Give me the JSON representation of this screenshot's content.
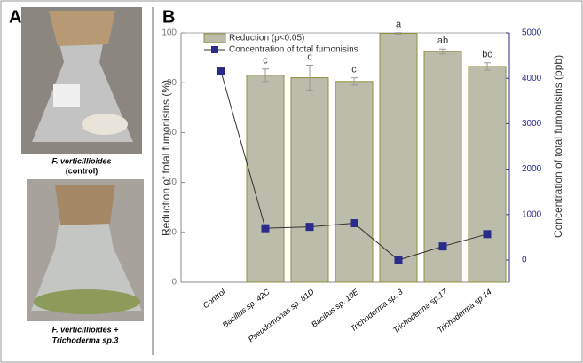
{
  "panels": {
    "a": "A",
    "b": "B"
  },
  "captions": [
    [
      "F. verticillioides",
      "(control)"
    ],
    [
      "F. verticillioides +",
      "Trichoderma sp.3"
    ]
  ],
  "chart_data": {
    "type": "bar",
    "categories": [
      "Control",
      "Bacillus sp. 42C",
      "Pseudomonas sp. 81D",
      "Bacillus sp. 10E",
      "Trichoderma sp. 3",
      "Trichoderma sp.17",
      "Trichoderma sp 14"
    ],
    "series": [
      {
        "name": "Reduction (p<0.05)",
        "color": "#bcbcaa",
        "edge": "#8f8f3c",
        "values": [
          null,
          83,
          82,
          80.5,
          99.8,
          92.5,
          86.5
        ],
        "errors": [
          null,
          2.5,
          5,
          1.5,
          0.3,
          1,
          1.5
        ],
        "letters": [
          null,
          "c",
          "c",
          "c",
          "a",
          "ab",
          "bc"
        ]
      },
      {
        "name": "Concentration of total fumonisins",
        "type": "line",
        "axis": "y2",
        "color": "#2b2b8c",
        "values": [
          4150,
          700,
          730,
          810,
          0,
          300,
          570
        ]
      }
    ],
    "ylabel": "Reduction of total fumonisins (%)",
    "y2label": "Concentration of total fumonisins (ppb)",
    "ylim": [
      0,
      100
    ],
    "yticks": [
      0,
      20,
      40,
      60,
      80,
      100
    ],
    "y2lim": [
      -488,
      5000
    ],
    "y2ticks": [
      0,
      1000,
      2000,
      3000,
      4000,
      5000
    ]
  }
}
